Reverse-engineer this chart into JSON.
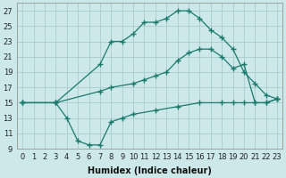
{
  "xlabel": "Humidex (Indice chaleur)",
  "bg_color": "#cce8e8",
  "grid_color": "#aacccc",
  "line_color": "#1a7a6e",
  "xlim": [
    -0.5,
    23.5
  ],
  "ylim": [
    9,
    28
  ],
  "xticks": [
    0,
    1,
    2,
    3,
    4,
    5,
    6,
    7,
    8,
    9,
    10,
    11,
    12,
    13,
    14,
    15,
    16,
    17,
    18,
    19,
    20,
    21,
    22,
    23
  ],
  "yticks": [
    9,
    11,
    13,
    15,
    17,
    19,
    21,
    23,
    25,
    27
  ],
  "series": [
    {
      "x": [
        0,
        3,
        7,
        8,
        9,
        10,
        11,
        12,
        13,
        14,
        15,
        16,
        17,
        18,
        19,
        20,
        21,
        22,
        23
      ],
      "y": [
        15,
        15,
        20,
        23,
        23,
        24,
        25.5,
        25.5,
        26,
        27,
        27,
        26,
        24.5,
        23.5,
        22,
        19,
        17.5,
        16,
        15.5
      ]
    },
    {
      "x": [
        0,
        3,
        7,
        8,
        10,
        11,
        12,
        13,
        14,
        15,
        16,
        17,
        18,
        19,
        20,
        21,
        22,
        23
      ],
      "y": [
        15,
        15,
        16.5,
        17,
        17.5,
        18,
        18.5,
        19,
        20.5,
        21.5,
        22,
        22,
        21,
        19.5,
        20,
        15,
        15,
        15.5
      ]
    },
    {
      "x": [
        0,
        3,
        4,
        5,
        6,
        7,
        8,
        9,
        10,
        12,
        14,
        16,
        18,
        19,
        20,
        21,
        22,
        23
      ],
      "y": [
        15,
        15,
        13,
        10,
        9.5,
        9.5,
        12.5,
        13,
        13.5,
        14,
        14.5,
        15,
        15,
        15,
        15,
        15,
        15,
        15.5
      ]
    }
  ]
}
